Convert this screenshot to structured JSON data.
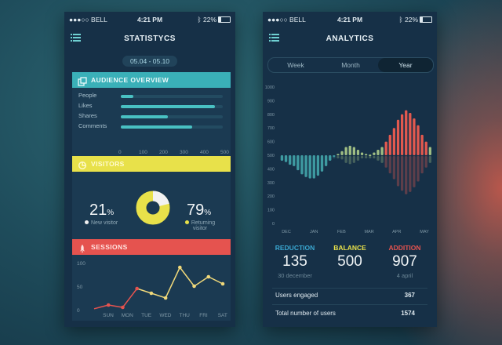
{
  "status": {
    "carrier": "●●●○○ BELL",
    "time": "4:21 PM",
    "battery": "22%"
  },
  "left": {
    "title": "STATISTYCS",
    "date_range": "05.04 - 05.10",
    "audience": {
      "header": "AUDIENCE OVERVIEW",
      "color": "#3ab0b8",
      "rows": [
        {
          "label": "People",
          "value": 60
        },
        {
          "label": "Likes",
          "value": 460
        },
        {
          "label": "Shares",
          "value": 230
        },
        {
          "label": "Comments",
          "value": 350
        }
      ],
      "axis": [
        "0",
        "100",
        "200",
        "300",
        "400",
        "500"
      ],
      "max": 500
    },
    "visitors": {
      "header": "VISITORS",
      "color": "#e8e14a",
      "new_value": "21",
      "new_unit": "%",
      "new_label": "New visitor",
      "ret_value": "79",
      "ret_unit": "%",
      "ret_label_1": "Returning",
      "ret_label_2": "visitor",
      "new_fraction": 0.21
    },
    "sessions": {
      "header": "SESSIONS",
      "color": "#e5534f",
      "y_ticks": [
        "100",
        "50",
        "0"
      ],
      "days": [
        "SUN",
        "MON",
        "TUE",
        "WED",
        "THU",
        "FRI",
        "SAT"
      ],
      "values": [
        2,
        10,
        5,
        45,
        35,
        25,
        90,
        50,
        70,
        55
      ],
      "ymax": 100
    }
  },
  "right": {
    "title": "ANALYTICS",
    "tabs": [
      "Week",
      "Month",
      "Year"
    ],
    "active_tab": "Year",
    "chart_data": {
      "type": "bar",
      "y_ticks": [
        "1000",
        "900",
        "800",
        "700",
        "600",
        "500",
        "400",
        "300",
        "200",
        "100",
        "0"
      ],
      "months": [
        "DEC",
        "JAN",
        "FEB",
        "MAR",
        "APR",
        "MAY"
      ],
      "baseline": 500,
      "ylim": [
        0,
        1000
      ],
      "values": [
        460,
        450,
        430,
        420,
        390,
        360,
        340,
        330,
        330,
        350,
        380,
        420,
        460,
        490,
        510,
        530,
        560,
        570,
        560,
        540,
        520,
        510,
        505,
        520,
        540,
        560,
        600,
        650,
        700,
        760,
        800,
        830,
        810,
        770,
        720,
        650,
        600,
        560
      ],
      "colors": {
        "low": "#3e9aa1",
        "mid": "#9fbd83",
        "high": "#e2594f"
      }
    },
    "stats": [
      {
        "label": "REDUCTION",
        "value": "135",
        "sub": "30 december",
        "color": "#3aa7d1"
      },
      {
        "label": "BALANCE",
        "value": "500",
        "sub": "",
        "color": "#e8e14a"
      },
      {
        "label": "ADDITION",
        "value": "907",
        "sub": "4 april",
        "color": "#e5534f"
      }
    ],
    "rows": [
      {
        "label": "Users engaged",
        "value": "367"
      },
      {
        "label": "Total number of users",
        "value": "1574"
      }
    ]
  }
}
